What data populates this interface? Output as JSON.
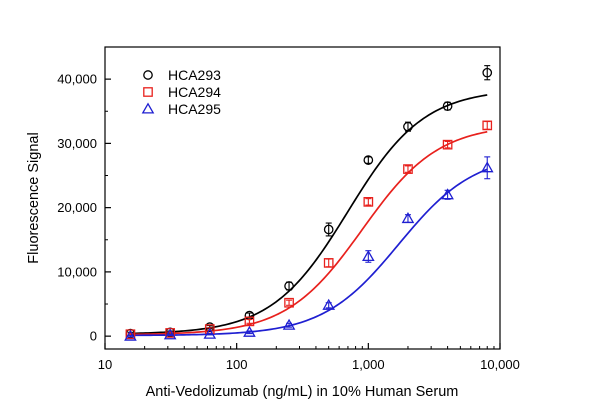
{
  "chart_data": {
    "type": "scatter",
    "title": "",
    "xlabel": "Anti-Vedolizumab (ng/mL) in 10% Human Serum",
    "ylabel": "Fluorescence Signal",
    "xscale": "log",
    "xlim": [
      10,
      10000
    ],
    "ylim": [
      -2000,
      45000
    ],
    "xticks": [
      10,
      100,
      1000,
      10000
    ],
    "xtick_labels": [
      "10",
      "100",
      "1,000",
      "10,000"
    ],
    "yticks": [
      0,
      10000,
      20000,
      30000,
      40000
    ],
    "ytick_labels": [
      "0",
      "10,000",
      "20,000",
      "30,000",
      "40,000"
    ],
    "grid": false,
    "legend_position": "top-left",
    "x": [
      15.6,
      31.25,
      62.5,
      125,
      250,
      500,
      1000,
      2000,
      4000,
      8000
    ],
    "series": [
      {
        "name": "HCA293",
        "color": "#000000",
        "marker": "circle",
        "values": [
          400,
          600,
          1400,
          3200,
          7800,
          16600,
          27400,
          32600,
          35800,
          41000
        ],
        "errors": [
          200,
          200,
          250,
          400,
          600,
          1000,
          500,
          700,
          600,
          1100
        ],
        "fit": {
          "bottom": 300,
          "top": 38500,
          "ec50": 700,
          "hill": 1.5
        }
      },
      {
        "name": "HCA294",
        "color": "#e8211d",
        "marker": "square",
        "values": [
          300,
          500,
          1100,
          2300,
          5200,
          11400,
          20900,
          26000,
          29800,
          32800
        ],
        "errors": [
          150,
          150,
          200,
          300,
          400,
          600,
          500,
          500,
          500,
          600
        ],
        "fit": {
          "bottom": 200,
          "top": 33000,
          "ec50": 900,
          "hill": 1.5
        }
      },
      {
        "name": "HCA295",
        "color": "#1f1fd1",
        "marker": "triangle",
        "values": [
          0,
          200,
          300,
          600,
          1700,
          4800,
          12400,
          18300,
          22000,
          26200
        ],
        "errors": [
          100,
          100,
          100,
          200,
          300,
          400,
          900,
          600,
          700,
          1700
        ],
        "fit": {
          "bottom": 100,
          "top": 28500,
          "ec50": 1700,
          "hill": 1.5
        }
      }
    ]
  }
}
